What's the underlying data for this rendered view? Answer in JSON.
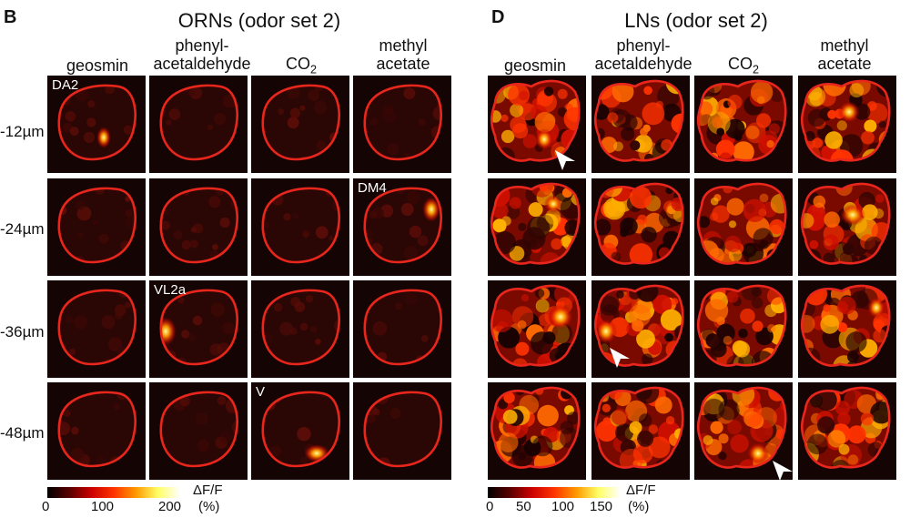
{
  "panelB": {
    "label": "B",
    "title": "ORNs (odor set 2)",
    "columns": [
      "geosmin",
      "phenyl-\nacetaldehyde",
      "CO2",
      "methyl\nacetate"
    ],
    "rows": [
      "-12µm",
      "-24µm",
      "-36µm",
      "-48µm"
    ],
    "glom_labels": [
      {
        "row": 0,
        "col": 0,
        "text": "DA2"
      },
      {
        "row": 1,
        "col": 3,
        "text": "DM4"
      },
      {
        "row": 2,
        "col": 1,
        "text": "VL2a"
      },
      {
        "row": 3,
        "col": 2,
        "text": "V"
      }
    ],
    "colorbar": {
      "ticks": [
        "0",
        "100",
        "200"
      ],
      "unit_top": "ΔF/F",
      "unit_bottom": "(%)"
    }
  },
  "panelD": {
    "label": "D",
    "title": "LNs (odor set 2)",
    "columns": [
      "geosmin",
      "phenyl-\nacetaldehyde",
      "CO2",
      "methyl\nacetate"
    ],
    "colorbar": {
      "ticks": [
        "0",
        "50",
        "100",
        "150"
      ],
      "unit_top": "ΔF/F",
      "unit_bottom": "(%)"
    }
  },
  "colors": {
    "outline": "#e8261c",
    "background": "#140404",
    "hot_high": "#ffff66",
    "hot_mid": "#ff3300"
  }
}
